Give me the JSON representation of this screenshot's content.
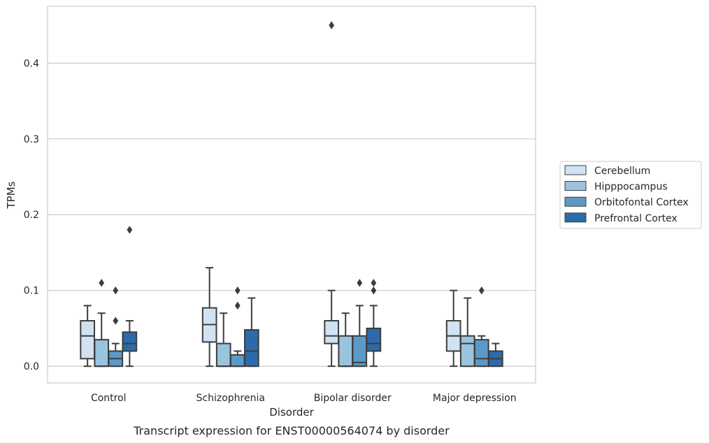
{
  "chart_data": {
    "type": "box",
    "title": "",
    "caption": "Transcript expression for ENST00000564074 by disorder",
    "xlabel": "Disorder",
    "ylabel": "TPMs",
    "ylim": [
      -0.022,
      0.475
    ],
    "yticks": [
      "0.0",
      "0.1",
      "0.2",
      "0.3",
      "0.4"
    ],
    "ytick_values": [
      0.0,
      0.1,
      0.2,
      0.3,
      0.4
    ],
    "grid": true,
    "legend_position": "right",
    "categories": [
      "Control",
      "Schizophrenia",
      "Bipolar disorder",
      "Major depression"
    ],
    "series": [
      {
        "name": "Cerebellum",
        "color": "#d1e2f2",
        "boxes": [
          {
            "min": 0.0,
            "q1": 0.01,
            "median": 0.04,
            "q3": 0.06,
            "max": 0.08,
            "outliers": []
          },
          {
            "min": 0.0,
            "q1": 0.032,
            "median": 0.055,
            "q3": 0.077,
            "max": 0.13,
            "outliers": []
          },
          {
            "min": 0.0,
            "q1": 0.03,
            "median": 0.04,
            "q3": 0.06,
            "max": 0.1,
            "outliers": [
              0.45
            ]
          },
          {
            "min": 0.0,
            "q1": 0.02,
            "median": 0.04,
            "q3": 0.06,
            "max": 0.1,
            "outliers": []
          }
        ]
      },
      {
        "name": "Hipppocampus",
        "color": "#9ac3de",
        "boxes": [
          {
            "min": 0.0,
            "q1": 0.0,
            "median": 0.0,
            "q3": 0.035,
            "max": 0.07,
            "outliers": [
              0.11
            ]
          },
          {
            "min": 0.0,
            "q1": 0.0,
            "median": 0.0,
            "q3": 0.03,
            "max": 0.07,
            "outliers": []
          },
          {
            "min": 0.0,
            "q1": 0.0,
            "median": 0.0,
            "q3": 0.04,
            "max": 0.07,
            "outliers": []
          },
          {
            "min": 0.0,
            "q1": 0.0,
            "median": 0.03,
            "q3": 0.04,
            "max": 0.09,
            "outliers": []
          }
        ]
      },
      {
        "name": "Orbitofontal Cortex",
        "color": "#5b9ac8",
        "boxes": [
          {
            "min": 0.0,
            "q1": 0.0,
            "median": 0.01,
            "q3": 0.02,
            "max": 0.03,
            "outliers": [
              0.06,
              0.1
            ]
          },
          {
            "min": 0.0,
            "q1": 0.0,
            "median": 0.0,
            "q3": 0.015,
            "max": 0.02,
            "outliers": [
              0.08,
              0.1
            ]
          },
          {
            "min": 0.0,
            "q1": 0.0,
            "median": 0.005,
            "q3": 0.04,
            "max": 0.08,
            "outliers": [
              0.11
            ]
          },
          {
            "min": 0.0,
            "q1": 0.0,
            "median": 0.01,
            "q3": 0.035,
            "max": 0.04,
            "outliers": [
              0.1
            ]
          }
        ]
      },
      {
        "name": "Prefrontal Cortex",
        "color": "#2b6bac",
        "boxes": [
          {
            "min": 0.0,
            "q1": 0.02,
            "median": 0.03,
            "q3": 0.045,
            "max": 0.06,
            "outliers": [
              0.18
            ]
          },
          {
            "min": 0.0,
            "q1": 0.0,
            "median": 0.02,
            "q3": 0.048,
            "max": 0.09,
            "outliers": []
          },
          {
            "min": 0.0,
            "q1": 0.02,
            "median": 0.03,
            "q3": 0.05,
            "max": 0.08,
            "outliers": [
              0.1,
              0.11
            ]
          },
          {
            "min": 0.0,
            "q1": 0.0,
            "median": 0.01,
            "q3": 0.02,
            "max": 0.03,
            "outliers": []
          }
        ]
      }
    ]
  }
}
